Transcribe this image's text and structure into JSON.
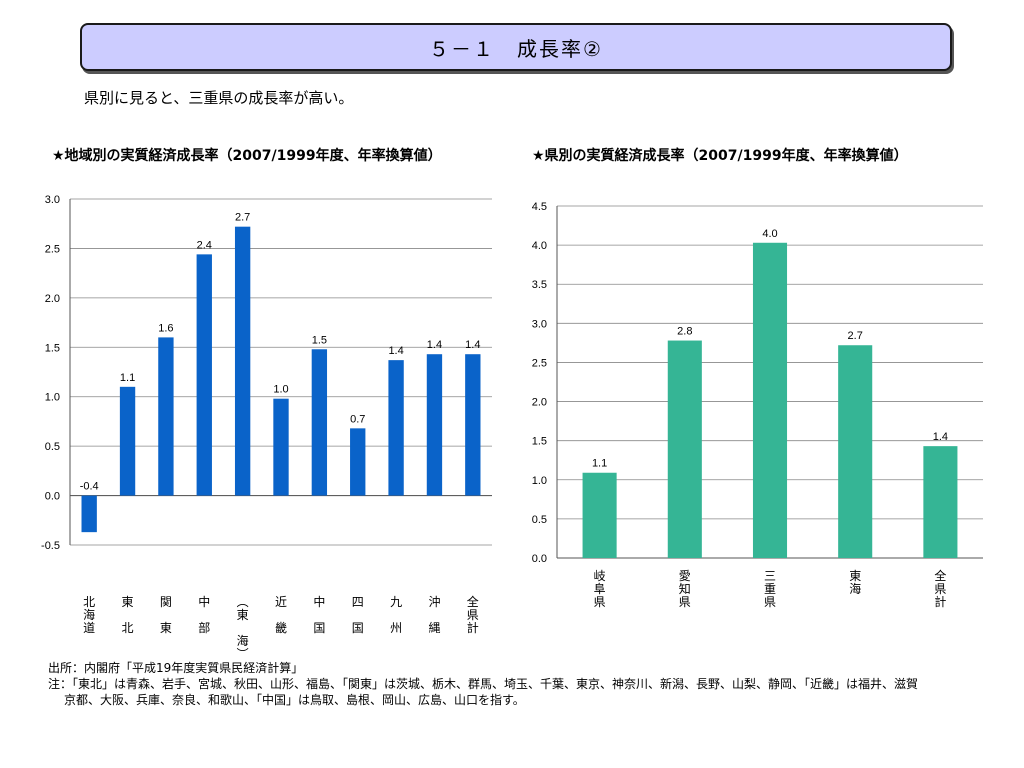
{
  "header": {
    "title": "５－１　成長率②"
  },
  "subtitle": "県別に見ると、三重県の成長率が高い。",
  "colors": {
    "left_bar": "#0a63c9",
    "right_bar": "#35b595",
    "title_bg": "#ccccff"
  },
  "chart_data": [
    {
      "type": "bar",
      "title": "★地域別の実質経済成長率（2007/1999年度、年率換算値）",
      "categories": [
        "北海道",
        "東北",
        "関東",
        "中部",
        "（東海）",
        "近畿",
        "中国",
        "四国",
        "九州",
        "沖縄",
        "全県計"
      ],
      "category_labels_vertical": [
        [
          "北",
          "海",
          "道"
        ],
        [
          "東",
          "",
          "北"
        ],
        [
          "関",
          "",
          "東"
        ],
        [
          "中",
          "",
          "部"
        ],
        [
          "︵",
          "東",
          "",
          "海",
          "︶"
        ],
        [
          "近",
          "",
          "畿"
        ],
        [
          "中",
          "",
          "国"
        ],
        [
          "四",
          "",
          "国"
        ],
        [
          "九",
          "",
          "州"
        ],
        [
          "沖",
          "",
          "縄"
        ],
        [
          "全",
          "県",
          "計"
        ]
      ],
      "values": [
        -0.37,
        1.1,
        1.6,
        2.44,
        2.72,
        0.98,
        1.48,
        0.68,
        1.37,
        1.43,
        1.43
      ],
      "data_labels": [
        "-0.4",
        "1.1",
        "1.6",
        "2.4",
        "2.7",
        "1.0",
        "1.5",
        "0.7",
        "1.4",
        "1.4",
        "1.4"
      ],
      "ylim": [
        -0.5,
        3.0
      ],
      "yticks": [
        "-0.5",
        "0.0",
        "0.5",
        "1.0",
        "1.5",
        "2.0",
        "2.5",
        "3.0"
      ],
      "xlabel": "",
      "ylabel": "",
      "grid": true
    },
    {
      "type": "bar",
      "title": "★県別の実質経済成長率（2007/1999年度、年率換算値）",
      "categories": [
        "岐阜県",
        "愛知県",
        "三重県",
        "東海",
        "全県計"
      ],
      "category_labels_vertical": [
        [
          "岐",
          "阜",
          "県"
        ],
        [
          "愛",
          "知",
          "県"
        ],
        [
          "三",
          "重",
          "県"
        ],
        [
          "東",
          "海"
        ],
        [
          "全",
          "県",
          "計"
        ]
      ],
      "values": [
        1.09,
        2.78,
        4.03,
        2.72,
        1.43
      ],
      "data_labels": [
        "1.1",
        "2.8",
        "4.0",
        "2.7",
        "1.4"
      ],
      "ylim": [
        0.0,
        4.5
      ],
      "yticks": [
        "0.0",
        "0.5",
        "1.0",
        "1.5",
        "2.0",
        "2.5",
        "3.0",
        "3.5",
        "4.0",
        "4.5"
      ],
      "xlabel": "",
      "ylabel": "",
      "grid": true
    }
  ],
  "notes": {
    "source": "出所：内閣府「平成19年度実質県民経済計算」",
    "note_line1": "注：「東北」は青森、岩手、宮城、秋田、山形、福島、「関東」は茨城、栃木、群馬、埼玉、千葉、東京、神奈川、新潟、長野、山梨、静岡、「近畿」は福井、滋賀",
    "note_line2": "京都、大阪、兵庫、奈良、和歌山、「中国」は鳥取、島根、岡山、広島、山口を指す。"
  }
}
